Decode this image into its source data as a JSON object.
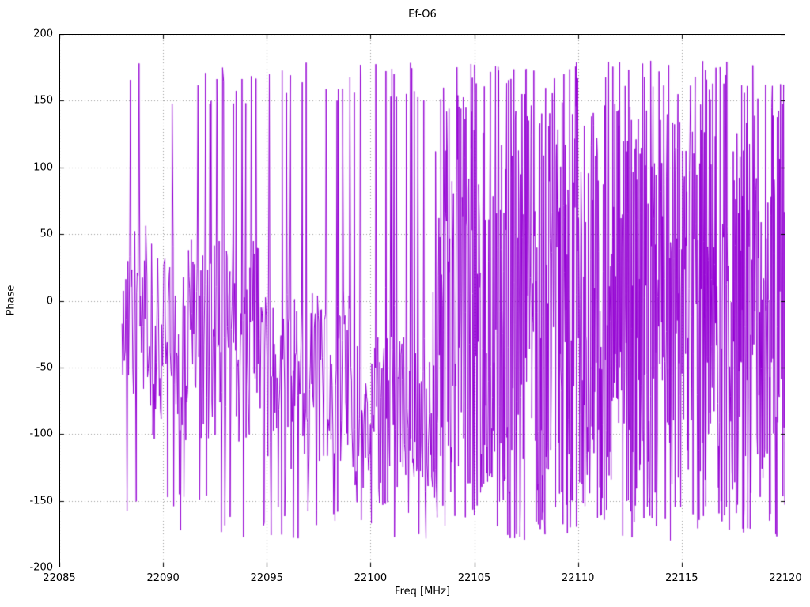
{
  "chart_data": {
    "type": "line",
    "title": "Ef-O6",
    "xlabel": "Freq [MHz]",
    "ylabel": "Phase",
    "xlim": [
      22085,
      22120
    ],
    "ylim": [
      -200,
      200
    ],
    "xticks": [
      22085,
      22090,
      22095,
      22100,
      22105,
      22110,
      22115,
      22120
    ],
    "yticks": [
      -200,
      -150,
      -100,
      -50,
      0,
      50,
      100,
      150,
      200
    ],
    "grid": true,
    "legend": "none",
    "line_color": "#9400d3",
    "series_name": "phase",
    "phase_wrap_range": [
      -180,
      180
    ],
    "seed": 42,
    "noise_segments": [
      {
        "x0": 22088.0,
        "x1": 22089.5,
        "n": 40,
        "mode": "band",
        "center": -10,
        "spread": 70,
        "spike_prob": 0.15,
        "spike_min": 150,
        "spike_max": 178
      },
      {
        "x0": 22089.5,
        "x1": 22095.0,
        "n": 165,
        "mode": "band",
        "center": -30,
        "spread": 78,
        "spike_prob": 0.2,
        "spike_min": 145,
        "spike_max": 178
      },
      {
        "x0": 22095.0,
        "x1": 22099.0,
        "n": 125,
        "mode": "band",
        "center": -60,
        "spread": 68,
        "spike_prob": 0.18,
        "spike_min": 150,
        "spike_max": 180
      },
      {
        "x0": 22099.0,
        "x1": 22103.0,
        "n": 125,
        "mode": "band",
        "center": -85,
        "spread": 58,
        "spike_prob": 0.22,
        "spike_min": 150,
        "spike_max": 180
      },
      {
        "x0": 22103.0,
        "x1": 22106.0,
        "n": 140,
        "mode": "uniform",
        "min": -178,
        "max": 180
      },
      {
        "x0": 22106.0,
        "x1": 22120.0,
        "n": 720,
        "mode": "uniform",
        "min": -180,
        "max": 180
      }
    ]
  }
}
